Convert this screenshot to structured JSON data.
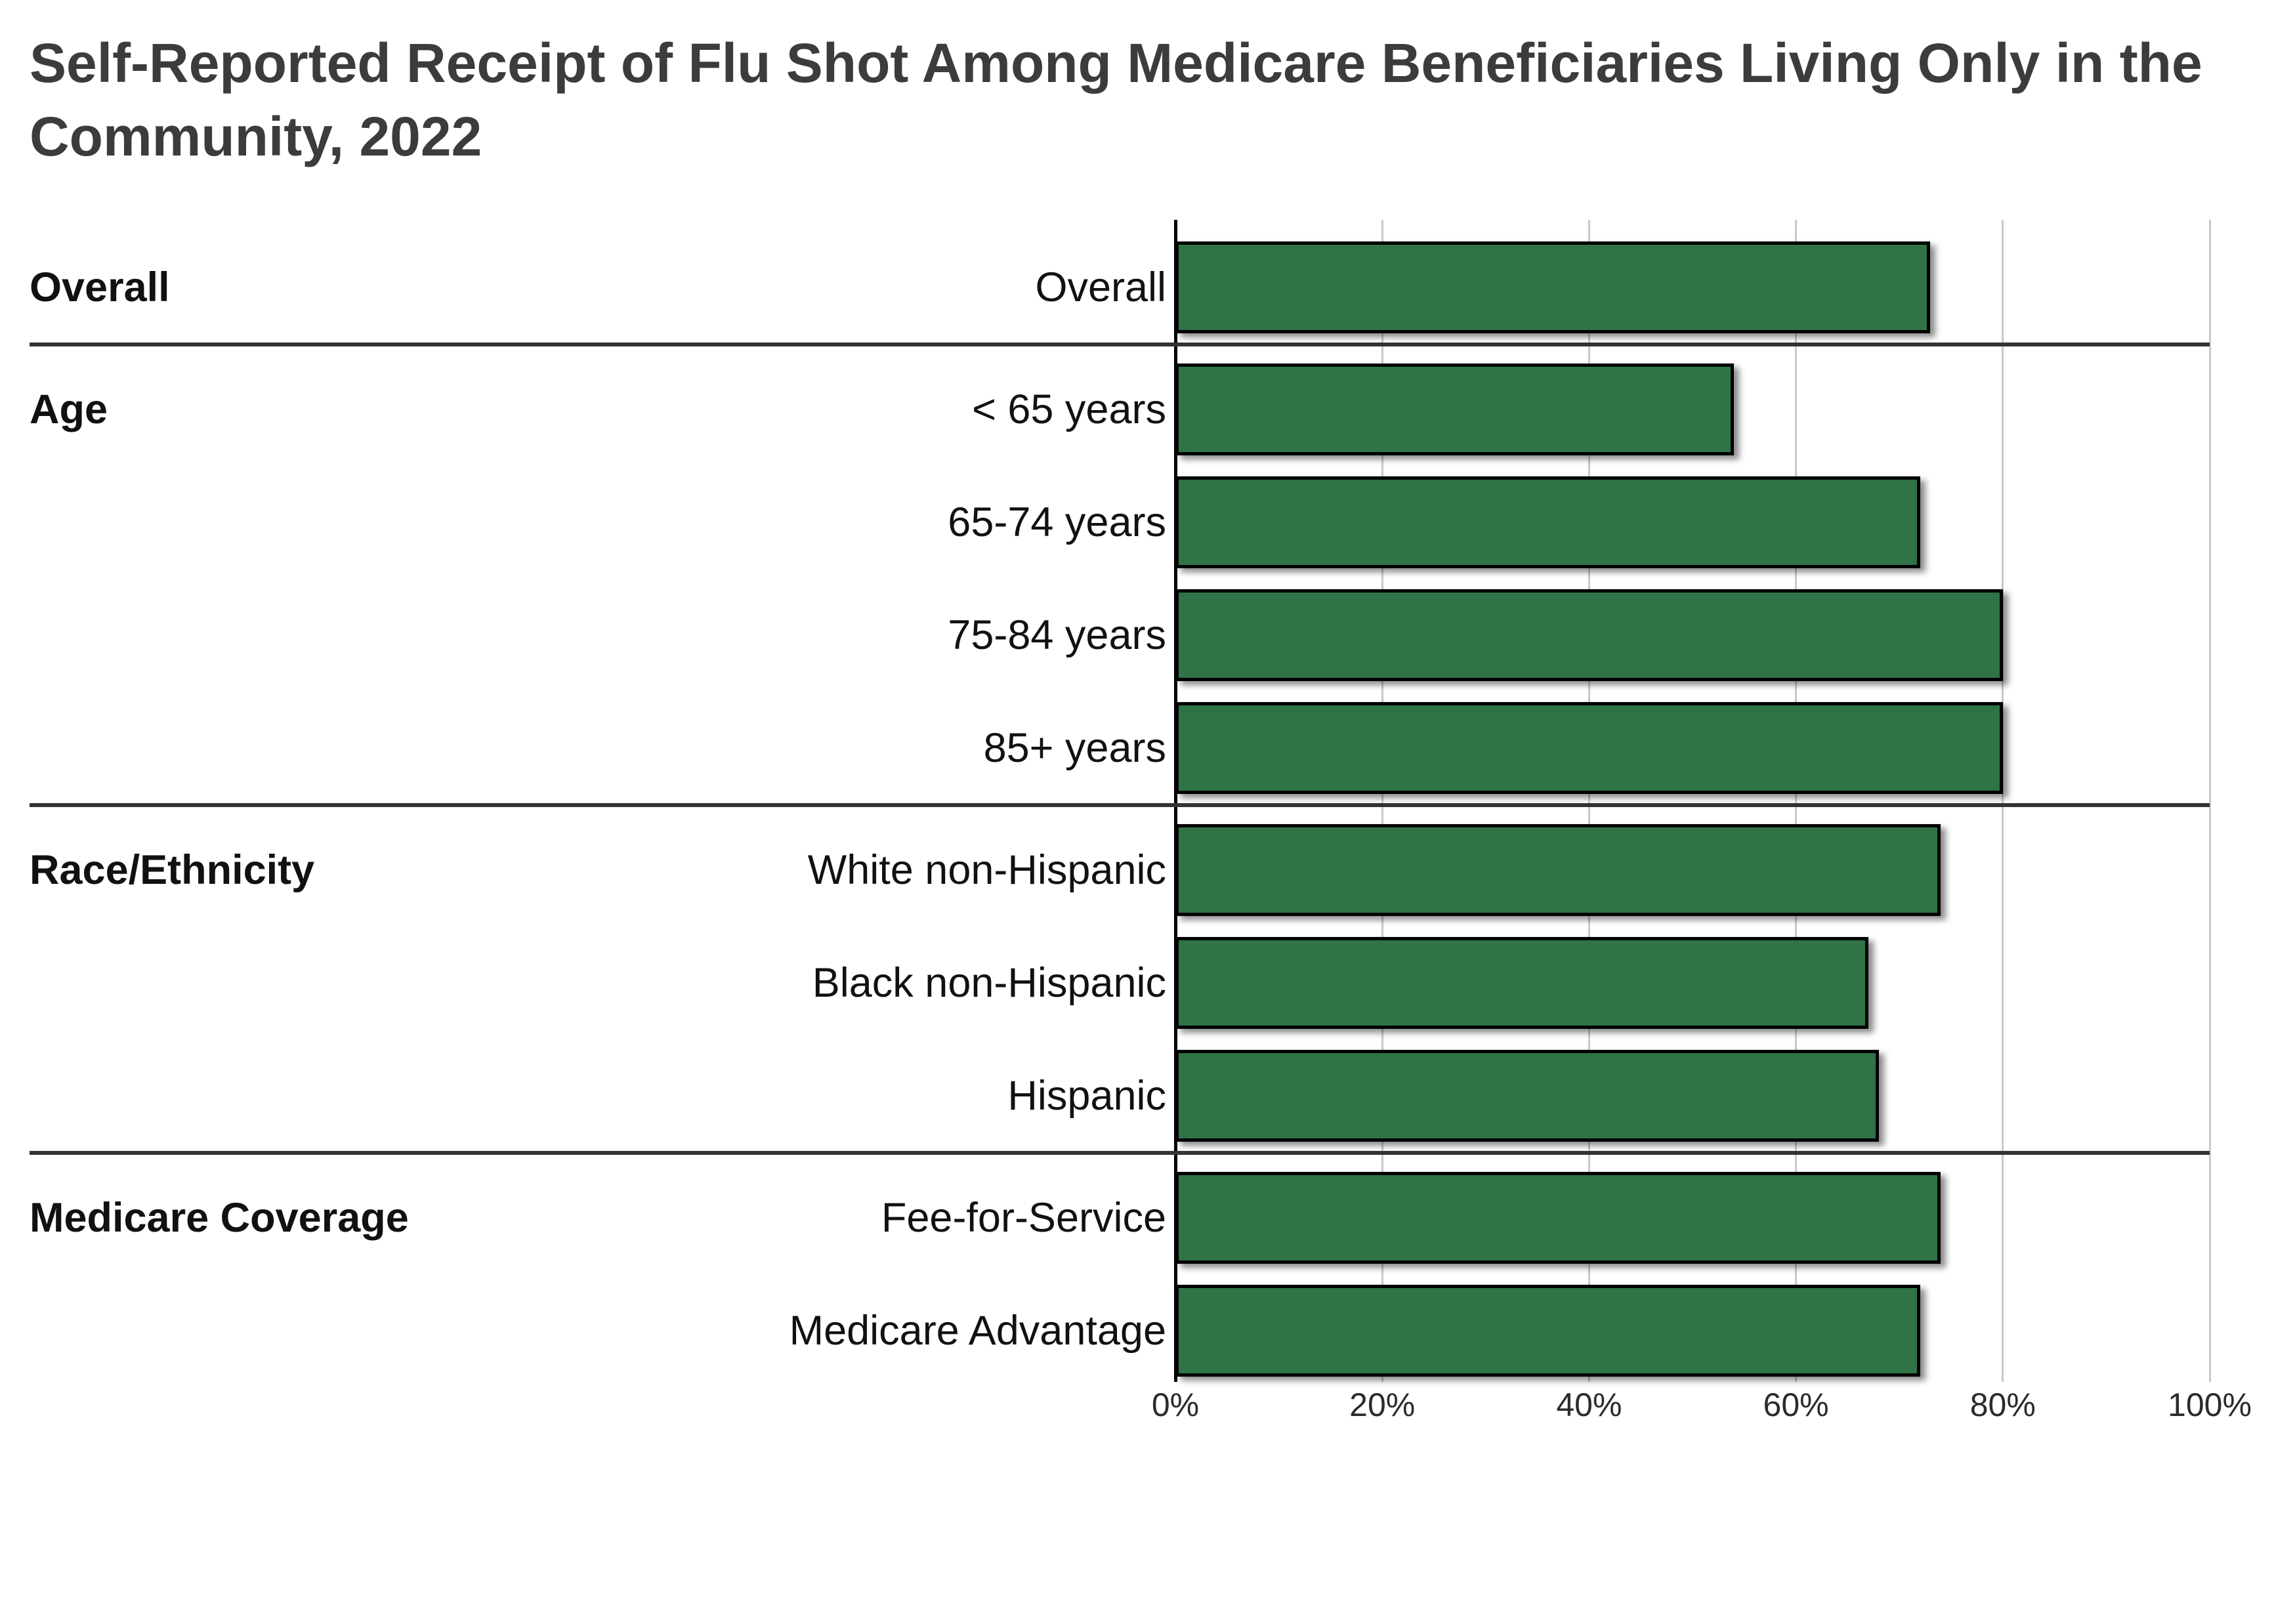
{
  "title": "Self-Reported Receipt of Flu Shot Among Medicare Beneficiaries Living Only in the\nCommunity, 2022",
  "colors": {
    "bar_fill": "#2f7347",
    "bar_border": "#000000",
    "gridline": "#c9c9c9",
    "axis_line": "#000000",
    "divider": "#333333",
    "title_text": "#3c3c3c",
    "label_text": "#111111",
    "tick_text": "#2b2b2b",
    "background": "#ffffff"
  },
  "chart_data": {
    "type": "bar",
    "orientation": "horizontal",
    "title": "Self-Reported Receipt of Flu Shot Among Medicare Beneficiaries Living Only in the Community, 2022",
    "xlabel": "",
    "ylabel": "",
    "unit": "%",
    "xlim": [
      0,
      100
    ],
    "x_ticks": [
      "0%",
      "20%",
      "40%",
      "60%",
      "80%",
      "100%"
    ],
    "grid": true,
    "legend": false,
    "groups": [
      {
        "label": "Overall",
        "rows": [
          {
            "label": "Overall",
            "value": 73
          }
        ]
      },
      {
        "label": "Age",
        "rows": [
          {
            "label": "< 65 years",
            "value": 54
          },
          {
            "label": "65-74 years",
            "value": 72
          },
          {
            "label": "75-84 years",
            "value": 80
          },
          {
            "label": "85+ years",
            "value": 80
          }
        ]
      },
      {
        "label": "Race/Ethnicity",
        "rows": [
          {
            "label": "White non-Hispanic",
            "value": 74
          },
          {
            "label": "Black non-Hispanic",
            "value": 67
          },
          {
            "label": "Hispanic",
            "value": 68
          }
        ]
      },
      {
        "label": "Medicare Coverage",
        "rows": [
          {
            "label": "Fee-for-Service",
            "value": 74
          },
          {
            "label": "Medicare Advantage",
            "value": 72
          }
        ]
      }
    ]
  }
}
